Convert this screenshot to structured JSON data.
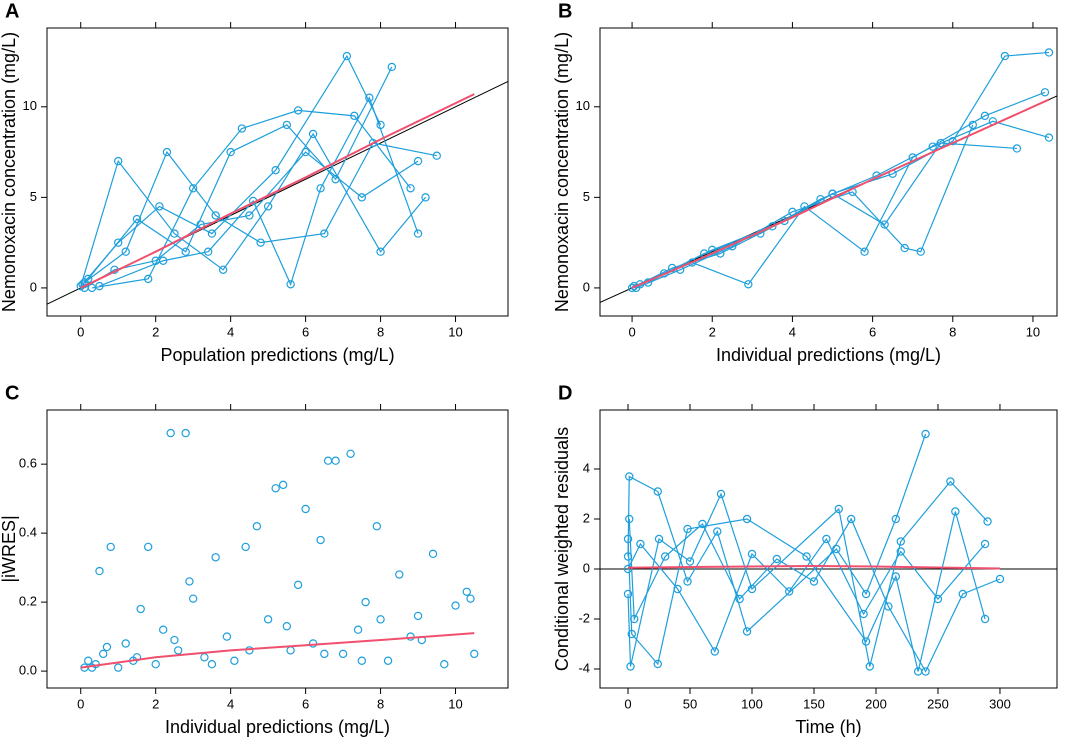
{
  "chart_data": [
    {
      "type": "scatter",
      "panel_label": "A",
      "xlabel": "Population predictions (mg/L)",
      "ylabel": "Nemonoxacin concentration (mg/L)",
      "xlim": [
        -0.9,
        11.4
      ],
      "ylim": [
        -1.55,
        14.35
      ],
      "xticks": [
        0,
        2,
        4,
        6,
        8,
        10
      ],
      "yticks": [
        0,
        5,
        10
      ],
      "reference": "identity",
      "series": [
        {
          "color": "#1e9fdc",
          "mode": "lines+markers",
          "x": [
            0.05,
            1.0,
            2.1,
            3.5,
            5.2,
            7.1,
            8.0
          ],
          "values": [
            0.2,
            2.5,
            4.5,
            3.0,
            6.5,
            12.8,
            9.0
          ]
        },
        {
          "color": "#1e9fdc",
          "mode": "lines+markers",
          "x": [
            0.1,
            0.9,
            2.0,
            3.2,
            4.5,
            6.0,
            7.5,
            9.0
          ],
          "values": [
            0,
            1.0,
            1.5,
            3.5,
            4.0,
            7.5,
            5.0,
            7.0
          ]
        },
        {
          "color": "#1e9fdc",
          "mode": "lines+markers",
          "x": [
            0.2,
            1.5,
            2.8,
            4.0,
            5.5,
            6.8,
            8.3
          ],
          "values": [
            0.5,
            3.8,
            2.0,
            7.5,
            9.0,
            6.0,
            12.2
          ]
        },
        {
          "color": "#1e9fdc",
          "mode": "lines+markers",
          "x": [
            0.0,
            1.0,
            2.5,
            3.8,
            5.0,
            6.2,
            8.0,
            9.2
          ],
          "values": [
            0.1,
            7.0,
            3.0,
            1.0,
            4.5,
            8.5,
            2.0,
            5.0
          ]
        },
        {
          "color": "#1e9fdc",
          "mode": "lines+markers",
          "x": [
            0.3,
            1.8,
            3.0,
            4.3,
            5.8,
            7.3,
            8.8
          ],
          "values": [
            0.0,
            0.5,
            5.5,
            8.8,
            9.8,
            9.5,
            5.5
          ]
        },
        {
          "color": "#1e9fdc",
          "mode": "lines+markers",
          "x": [
            0.1,
            1.2,
            2.3,
            3.6,
            4.8,
            6.5,
            7.8,
            9.5
          ],
          "values": [
            0.3,
            2.0,
            7.5,
            4.0,
            2.5,
            3.0,
            8.0,
            7.3
          ]
        },
        {
          "color": "#1e9fdc",
          "mode": "lines+markers",
          "x": [
            0.5,
            2.2,
            3.4,
            4.6,
            5.6,
            6.4,
            7.7,
            9.0
          ],
          "values": [
            0.1,
            1.5,
            2.0,
            4.8,
            0.2,
            5.5,
            10.5,
            3.0
          ]
        },
        {
          "color": "#f0506e",
          "mode": "lines",
          "x": [
            0,
            2,
            4,
            6,
            8,
            10.5
          ],
          "values": [
            0,
            2.0,
            4.1,
            6.1,
            8.2,
            10.7
          ]
        }
      ]
    },
    {
      "type": "scatter",
      "panel_label": "B",
      "xlabel": "Individual predictions (mg/L)",
      "ylabel": "Nemonoxacin concentration (mg/L)",
      "xlim": [
        -0.8,
        10.6
      ],
      "ylim": [
        -1.55,
        14.35
      ],
      "xticks": [
        0,
        2,
        4,
        6,
        8,
        10
      ],
      "yticks": [
        0,
        5,
        10
      ],
      "reference": "identity",
      "series": [
        {
          "color": "#1e9fdc",
          "mode": "lines+markers",
          "x": [
            0.05,
            0.8,
            2.0,
            3.5,
            5.0,
            6.5,
            8.0,
            9.3,
            10.4
          ],
          "values": [
            0.1,
            0.8,
            2.1,
            3.4,
            5.2,
            6.3,
            8.1,
            12.8,
            13.0
          ]
        },
        {
          "color": "#1e9fdc",
          "mode": "lines+markers",
          "x": [
            0.1,
            1.2,
            2.5,
            4.0,
            5.5,
            6.8,
            7.2,
            8.5
          ],
          "values": [
            0.0,
            1.0,
            2.3,
            4.2,
            5.3,
            2.2,
            2.0,
            9.0
          ]
        },
        {
          "color": "#1e9fdc",
          "mode": "lines+markers",
          "x": [
            0.2,
            1.5,
            2.9,
            4.3,
            5.8,
            7.0,
            8.8,
            10.3
          ],
          "values": [
            0.2,
            1.4,
            0.2,
            4.5,
            2.0,
            7.2,
            9.5,
            10.8
          ]
        },
        {
          "color": "#1e9fdc",
          "mode": "lines+markers",
          "x": [
            0.0,
            1.0,
            2.2,
            3.8,
            5.0,
            6.3,
            7.7,
            9.6
          ],
          "values": [
            0.0,
            1.1,
            1.9,
            3.7,
            5.2,
            3.5,
            8.0,
            7.7
          ]
        },
        {
          "color": "#1e9fdc",
          "mode": "lines+markers",
          "x": [
            0.4,
            1.8,
            3.2,
            4.7,
            6.1,
            7.5,
            9.0,
            10.4
          ],
          "values": [
            0.3,
            1.9,
            3.0,
            4.9,
            6.2,
            7.8,
            9.2,
            8.3
          ]
        },
        {
          "color": "#f0506e",
          "mode": "lines",
          "x": [
            0,
            2,
            4,
            6,
            8,
            10.4
          ],
          "values": [
            0,
            1.9,
            3.9,
            6.0,
            8.0,
            10.4
          ]
        }
      ]
    },
    {
      "type": "scatter",
      "panel_label": "C",
      "xlabel": "Individual predictions (mg/L)",
      "ylabel": "|iWRES|",
      "xlim": [
        -0.9,
        11.4
      ],
      "ylim": [
        -0.049,
        0.757
      ],
      "xticks": [
        0,
        2,
        4,
        6,
        8,
        10
      ],
      "yticks": [
        {
          "value": 0,
          "label": "0.0"
        },
        0.2,
        0.4,
        0.6
      ],
      "series": [
        {
          "color": "#1e9fdc",
          "mode": "markers",
          "x": [
            0.1,
            0.2,
            0.4,
            0.5,
            0.6,
            0.8,
            1.0,
            1.2,
            1.4,
            1.6,
            1.8,
            2.0,
            2.2,
            2.4,
            2.6,
            2.8,
            3.0,
            3.3,
            3.6,
            3.9,
            4.1,
            4.4,
            4.7,
            5.0,
            5.2,
            5.4,
            5.6,
            5.8,
            6.0,
            6.2,
            6.4,
            6.6,
            6.8,
            7.0,
            7.2,
            7.4,
            7.6,
            7.9,
            8.2,
            8.5,
            8.8,
            9.1,
            9.4,
            9.7,
            10.0,
            10.3,
            10.5,
            0.3,
            0.7,
            1.5,
            2.5,
            3.5,
            4.5,
            5.5,
            6.5,
            7.5,
            8.0,
            9.0,
            10.4,
            2.9
          ],
          "values": [
            0.01,
            0.03,
            0.02,
            0.29,
            0.05,
            0.36,
            0.01,
            0.08,
            0.03,
            0.18,
            0.36,
            0.02,
            0.12,
            0.69,
            0.06,
            0.69,
            0.21,
            0.04,
            0.33,
            0.1,
            0.03,
            0.36,
            0.42,
            0.15,
            0.53,
            0.54,
            0.06,
            0.25,
            0.47,
            0.08,
            0.38,
            0.61,
            0.61,
            0.05,
            0.63,
            0.12,
            0.2,
            0.42,
            0.03,
            0.28,
            0.1,
            0.09,
            0.34,
            0.02,
            0.19,
            0.23,
            0.05,
            0.01,
            0.07,
            0.04,
            0.09,
            0.02,
            0.06,
            0.13,
            0.05,
            0.03,
            0.15,
            0.16,
            0.21,
            0.26
          ]
        },
        {
          "color": "#f0506e",
          "mode": "lines",
          "x": [
            0,
            2,
            4,
            6,
            8,
            10.5
          ],
          "values": [
            0.01,
            0.04,
            0.06,
            0.075,
            0.09,
            0.11
          ]
        }
      ]
    },
    {
      "type": "scatter",
      "panel_label": "D",
      "xlabel": "Time (h)",
      "ylabel": "Conditional weighted residuals",
      "xlim": [
        -22.6,
        346
      ],
      "ylim": [
        -4.76,
        6.36
      ],
      "xticks": [
        0,
        50,
        100,
        150,
        200,
        250,
        300
      ],
      "yticks": [
        -4,
        -2,
        0,
        2,
        4
      ],
      "reference": "zero",
      "series": [
        {
          "color": "#1e9fdc",
          "mode": "lines+markers",
          "x": [
            0,
            1,
            24,
            48,
            72,
            96,
            168,
            192,
            216,
            240
          ],
          "values": [
            0.5,
            3.7,
            3.1,
            -0.5,
            1.5,
            -2.5,
            0.8,
            -1.0,
            2.0,
            5.4
          ]
        },
        {
          "color": "#1e9fdc",
          "mode": "lines+markers",
          "x": [
            0,
            2,
            25,
            50,
            75,
            100,
            170,
            195,
            220,
            260,
            290
          ],
          "values": [
            -1,
            -3.9,
            1.2,
            0.3,
            3.0,
            -0.8,
            2.4,
            -3.9,
            1.1,
            3.5,
            1.9
          ]
        },
        {
          "color": "#1e9fdc",
          "mode": "lines+markers",
          "x": [
            1,
            5,
            30,
            60,
            90,
            120,
            150,
            180,
            210,
            240,
            270,
            300
          ],
          "values": [
            2,
            -2,
            0.5,
            1.8,
            -1.2,
            0.4,
            -0.5,
            2.0,
            -1.5,
            -4.1,
            -1.0,
            -0.4
          ]
        },
        {
          "color": "#1e9fdc",
          "mode": "lines+markers",
          "x": [
            0,
            10,
            40,
            70,
            100,
            130,
            160,
            190,
            220,
            250,
            288
          ],
          "values": [
            0,
            1.0,
            -0.8,
            -3.3,
            0.6,
            -0.9,
            1.2,
            -1.8,
            0.7,
            -1.2,
            1.0
          ]
        },
        {
          "color": "#1e9fdc",
          "mode": "lines+markers",
          "x": [
            0,
            3,
            24,
            48,
            96,
            144,
            192,
            216,
            234,
            264,
            288
          ],
          "values": [
            1.2,
            -2.6,
            -3.8,
            1.6,
            2.0,
            0.5,
            -2.9,
            -0.3,
            -4.1,
            2.3,
            -2.0
          ]
        },
        {
          "color": "#f0506e",
          "mode": "lines",
          "x": [
            0,
            50,
            100,
            150,
            200,
            250,
            300
          ],
          "values": [
            0.05,
            0.08,
            0.1,
            0.12,
            0.1,
            0.06,
            0.02
          ]
        }
      ]
    }
  ]
}
